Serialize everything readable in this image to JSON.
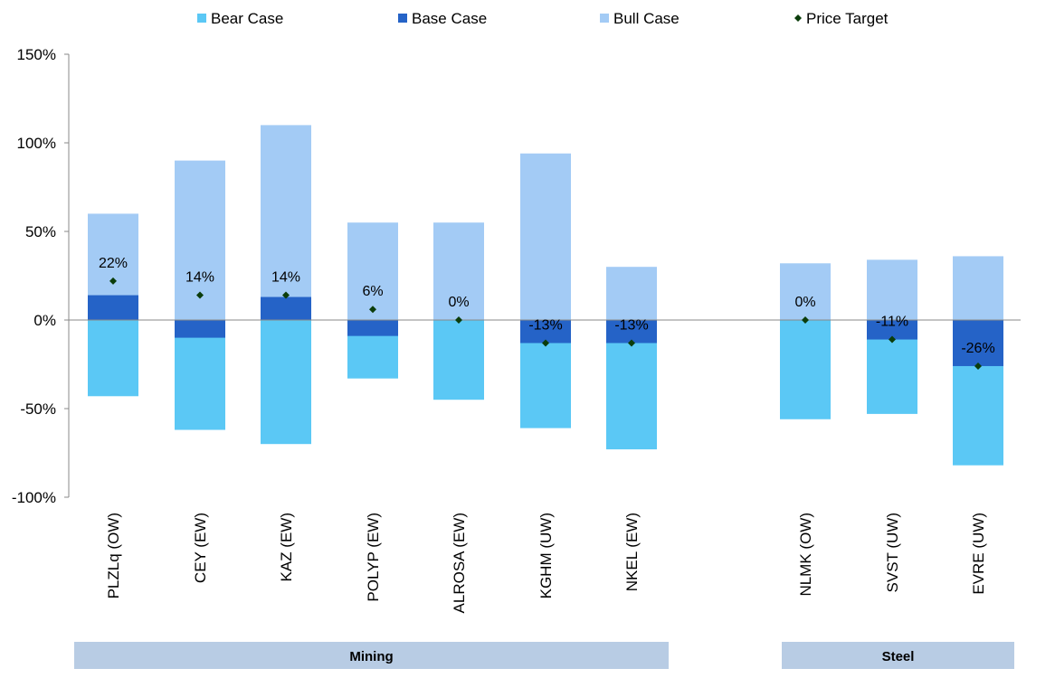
{
  "chart_data": {
    "type": "bar",
    "stacked": true,
    "categories": [
      "PLZLq (OW)",
      "CEY (EW)",
      "KAZ (EW)",
      "POLYP (EW)",
      "ALROSA (EW)",
      "KGHM (UW)",
      "NKEL (EW)",
      "NLMK (OW)",
      "SVST (UW)",
      "EVRE (UW)"
    ],
    "groups": [
      {
        "name": "Mining",
        "categories": [
          "PLZLq (OW)",
          "CEY (EW)",
          "KAZ (EW)",
          "POLYP (EW)",
          "ALROSA (EW)",
          "KGHM (UW)",
          "NKEL (EW)"
        ]
      },
      {
        "name": "Steel",
        "categories": [
          "NLMK (OW)",
          "SVST (UW)",
          "EVRE (UW)"
        ]
      }
    ],
    "series": [
      {
        "name": "Bear Case",
        "color": "#5bc8f5",
        "values": [
          -43,
          -62,
          -70,
          -33,
          -45,
          -61,
          -73,
          -56,
          -53,
          -82
        ]
      },
      {
        "name": "Base Case",
        "color": "#2563c7",
        "values": [
          14,
          -10,
          13,
          -9,
          0,
          -13,
          -13,
          0,
          -11,
          -26
        ]
      },
      {
        "name": "Bull Case",
        "color": "#a3cbf5",
        "values": [
          60,
          90,
          110,
          55,
          55,
          94,
          30,
          32,
          34,
          36
        ]
      }
    ],
    "price_target": {
      "name": "Price Target",
      "color": "#0b3d0b",
      "values": [
        22,
        14,
        14,
        6,
        0,
        -13,
        -13,
        0,
        -11,
        -26
      ],
      "labels": [
        "22%",
        "14%",
        "14%",
        "6%",
        "0%",
        "-13%",
        "-13%",
        "0%",
        "-11%",
        "-26%"
      ]
    },
    "y_ticks": [
      150,
      100,
      50,
      0,
      -50,
      -100
    ],
    "y_tick_labels": [
      "150%",
      "100%",
      "50%",
      "0%",
      "-50%",
      "-100%"
    ],
    "ylim": [
      -100,
      150
    ],
    "grid": false,
    "legend_position": "top"
  }
}
